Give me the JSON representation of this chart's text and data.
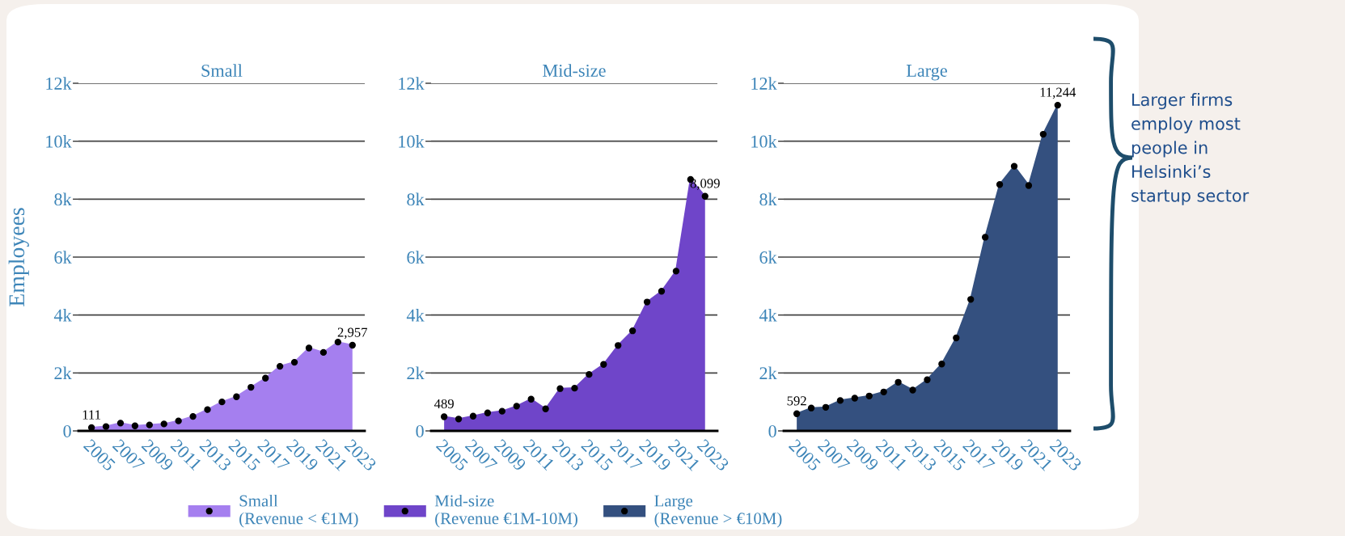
{
  "chart_data": [
    {
      "type": "area",
      "title": "Small",
      "ylabel": "Employees",
      "x": [
        2005,
        2006,
        2007,
        2008,
        2009,
        2010,
        2011,
        2012,
        2013,
        2014,
        2015,
        2016,
        2017,
        2018,
        2019,
        2020,
        2021,
        2022,
        2023
      ],
      "series": [
        {
          "name": "Small\n(Revenue < €1M)",
          "color": "#a57fef",
          "values": [
            111,
            150,
            270,
            175,
            205,
            240,
            345,
            500,
            735,
            1000,
            1180,
            1505,
            1820,
            2230,
            2370,
            2860,
            2710,
            3065,
            2957
          ],
          "value_labels": [
            "111",
            null,
            null,
            null,
            null,
            null,
            null,
            null,
            null,
            null,
            null,
            null,
            null,
            null,
            null,
            null,
            null,
            null,
            "2,957"
          ]
        }
      ],
      "xlim": [
        2004.1,
        2023.85
      ],
      "xticks": [
        2005,
        2007,
        2009,
        2011,
        2013,
        2015,
        2017,
        2019,
        2021,
        2023
      ],
      "ylim": [
        0,
        12000
      ],
      "yticks": [
        {
          "value": 0,
          "label": "0"
        },
        {
          "value": 2000,
          "label": "2k"
        },
        {
          "value": 4000,
          "label": "4k"
        },
        {
          "value": 6000,
          "label": "6k"
        },
        {
          "value": 8000,
          "label": "8k"
        },
        {
          "value": 10000,
          "label": "10k"
        },
        {
          "value": 12000,
          "label": "12k"
        }
      ],
      "grid": "y",
      "marker": "circle",
      "legend": "bottom"
    },
    {
      "type": "area",
      "title": "Mid-size",
      "x": [
        2005,
        2006,
        2007,
        2008,
        2009,
        2010,
        2011,
        2012,
        2013,
        2014,
        2015,
        2016,
        2017,
        2018,
        2019,
        2020,
        2021,
        2022,
        2023
      ],
      "series": [
        {
          "name": "Mid-size\n(Revenue €1M-10M)",
          "color": "#6f45c9",
          "values": [
            489,
            410,
            510,
            620,
            680,
            855,
            1095,
            760,
            1460,
            1475,
            1950,
            2295,
            2950,
            3455,
            4450,
            4820,
            5515,
            8680,
            8099
          ],
          "value_labels": [
            "489",
            null,
            null,
            null,
            null,
            null,
            null,
            null,
            null,
            null,
            null,
            null,
            null,
            null,
            null,
            null,
            null,
            null,
            "8,099"
          ]
        }
      ],
      "xlim": [
        2004.1,
        2023.85
      ],
      "xticks": [
        2005,
        2007,
        2009,
        2011,
        2013,
        2015,
        2017,
        2019,
        2021,
        2023
      ],
      "ylim": [
        0,
        12000
      ],
      "yticks": [
        {
          "value": 0,
          "label": "0"
        },
        {
          "value": 2000,
          "label": "2k"
        },
        {
          "value": 4000,
          "label": "4k"
        },
        {
          "value": 6000,
          "label": "6k"
        },
        {
          "value": 8000,
          "label": "8k"
        },
        {
          "value": 10000,
          "label": "10k"
        },
        {
          "value": 12000,
          "label": "12k"
        }
      ],
      "grid": "y",
      "marker": "circle",
      "legend": "bottom"
    },
    {
      "type": "area",
      "title": "Large",
      "x": [
        2005,
        2006,
        2007,
        2008,
        2009,
        2010,
        2011,
        2012,
        2013,
        2014,
        2015,
        2016,
        2017,
        2018,
        2019,
        2020,
        2021,
        2022,
        2023
      ],
      "series": [
        {
          "name": "Large\n(Revenue > €10M)",
          "color": "#34507f",
          "values": [
            592,
            790,
            815,
            1050,
            1130,
            1205,
            1345,
            1680,
            1410,
            1765,
            2310,
            3210,
            4540,
            6685,
            8505,
            9135,
            8470,
            10240,
            11244
          ],
          "value_labels": [
            "592",
            null,
            null,
            null,
            null,
            null,
            null,
            null,
            null,
            null,
            null,
            null,
            null,
            null,
            null,
            null,
            null,
            null,
            "11,244"
          ]
        }
      ],
      "xlim": [
        2004.1,
        2023.85
      ],
      "xticks": [
        2005,
        2007,
        2009,
        2011,
        2013,
        2015,
        2017,
        2019,
        2021,
        2023
      ],
      "ylim": [
        0,
        12000
      ],
      "yticks": [
        {
          "value": 0,
          "label": "0"
        },
        {
          "value": 2000,
          "label": "2k"
        },
        {
          "value": 4000,
          "label": "4k"
        },
        {
          "value": 6000,
          "label": "6k"
        },
        {
          "value": 8000,
          "label": "8k"
        },
        {
          "value": 10000,
          "label": "10k"
        },
        {
          "value": 12000,
          "label": "12k"
        }
      ],
      "grid": "y",
      "marker": "circle",
      "legend": "bottom",
      "annotations": [
        "Larger firms\nemploy most\npeople in\nHelsinki’s\nstartup sector"
      ]
    }
  ]
}
